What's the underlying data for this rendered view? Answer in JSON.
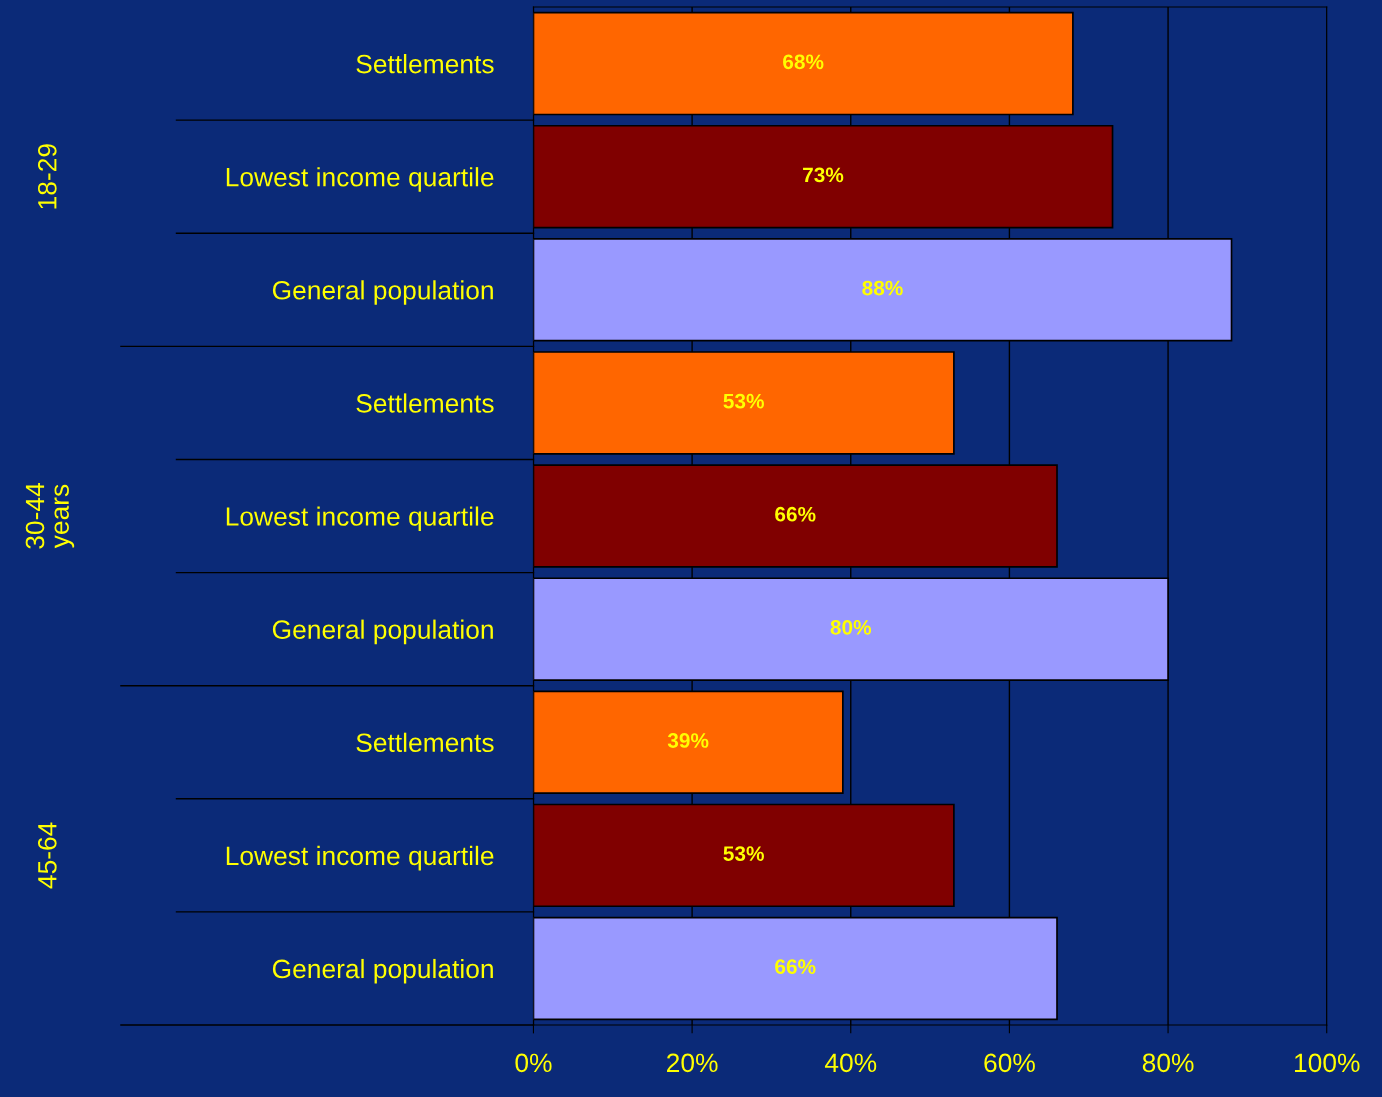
{
  "chart_data": {
    "type": "bar",
    "orientation": "horizontal",
    "categories": [
      "Settlements",
      "Lowest income quartile",
      "General population",
      "Settlements",
      "Lowest income quartile",
      "General population",
      "Settlements",
      "Lowest income quartile",
      "General population"
    ],
    "values": [
      68,
      73,
      88,
      53,
      66,
      80,
      39,
      53,
      66
    ],
    "colors": [
      "#ff6600",
      "#800000",
      "#9999ff",
      "#ff6600",
      "#800000",
      "#9999ff",
      "#ff6600",
      "#800000",
      "#9999ff"
    ],
    "xlim": [
      0,
      100
    ],
    "xticks": [
      {
        "value": 0,
        "label": "0%"
      },
      {
        "value": 20,
        "label": "20%"
      },
      {
        "value": 40,
        "label": "40%"
      },
      {
        "value": 60,
        "label": "60%"
      },
      {
        "value": 80,
        "label": "80%"
      },
      {
        "value": 100,
        "label": "100%"
      }
    ],
    "value_labels": [
      "68%",
      "73%",
      "88%",
      "53%",
      "66%",
      "80%",
      "39%",
      "53%",
      "66%"
    ],
    "annotations": [
      "18-29",
      "30-44\nyears",
      "45-64"
    ],
    "grid": "x",
    "legend": false
  }
}
